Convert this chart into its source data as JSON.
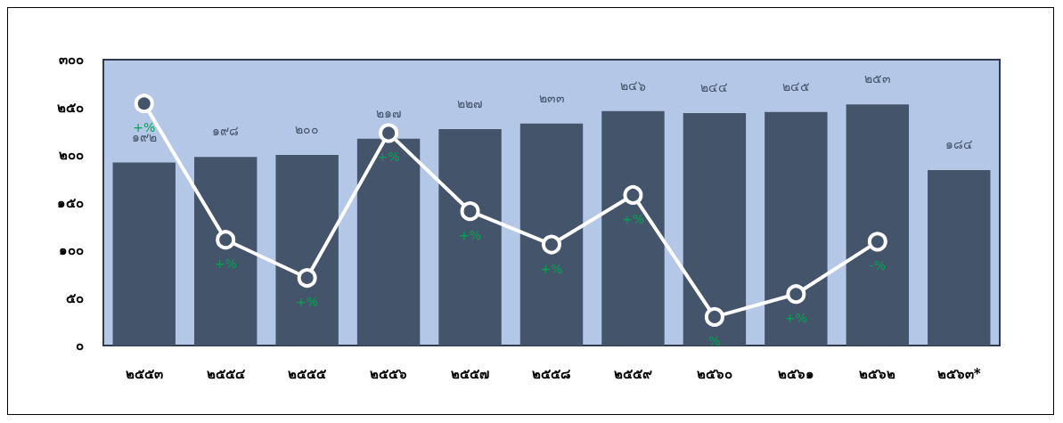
{
  "chart_data": {
    "type": "bar",
    "categories": [
      "๒๕๕๓",
      "๒๕๕๔",
      "๒๕๕๕",
      "๒๕๕๖",
      "๒๕๕๗",
      "๒๕๕๘",
      "๒๕๕๙",
      "๒๕๖๐",
      "๒๕๖๑",
      "๒๕๖๒",
      "๒๕๖๓*"
    ],
    "series": [
      {
        "color": "#44546a",
        "values": [
          192,
          198,
          200,
          217,
          227,
          233,
          246,
          244,
          245,
          253,
          184
        ],
        "value_labels": [
          "๑๙๒",
          "๑๙๘",
          "๒๐๐",
          "๒๑๗",
          "๒๒๗",
          "๒๓๓",
          "๒๔๖",
          "๒๔๔",
          "๒๔๕",
          "๒๕๓",
          "๑๘๔"
        ]
      },
      {
        "type": "line",
        "color": "#ffffff",
        "values": [
          254,
          111,
          71,
          223,
          141,
          106,
          158,
          30,
          54,
          109,
          null
        ],
        "value_labels": [
          "+%",
          "+%",
          "+%",
          "+%",
          "+%",
          "+%",
          "+%",
          "%",
          "+%",
          "-%",
          null
        ]
      }
    ],
    "ylim": [
      0,
      300
    ],
    "yticks": [
      {
        "value": 0,
        "label": "๐"
      },
      {
        "value": 50,
        "label": "๕๐"
      },
      {
        "value": 100,
        "label": "๑๐๐"
      },
      {
        "value": 150,
        "label": "๑๕๐"
      },
      {
        "value": 200,
        "label": "๒๐๐"
      },
      {
        "value": 250,
        "label": "๒๕๐"
      },
      {
        "value": 300,
        "label": "๓๐๐"
      }
    ],
    "marker": "circle",
    "grid": false
  }
}
